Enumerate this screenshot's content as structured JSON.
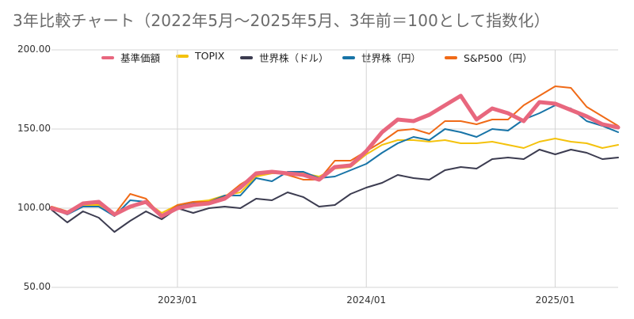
{
  "chart_data": {
    "type": "line",
    "title": "3年比較チャート（2022年5月～2025年5月、3年前＝100として指数化）",
    "xlabel": "",
    "ylabel": "",
    "ylim": [
      50,
      200
    ],
    "xlim": [
      "2022-05",
      "2025-05"
    ],
    "y_ticks": [
      "200.00",
      "150.00",
      "100.00",
      "50.00"
    ],
    "x_ticks": [
      "2023/01",
      "2024/01",
      "2025/01"
    ],
    "grid": true,
    "legend_position": "top",
    "x": [
      "2022-05",
      "2022-06",
      "2022-07",
      "2022-08",
      "2022-09",
      "2022-10",
      "2022-11",
      "2022-12",
      "2023-01",
      "2023-02",
      "2023-03",
      "2023-04",
      "2023-05",
      "2023-06",
      "2023-07",
      "2023-08",
      "2023-09",
      "2023-10",
      "2023-11",
      "2023-12",
      "2024-01",
      "2024-02",
      "2024-03",
      "2024-04",
      "2024-05",
      "2024-06",
      "2024-07",
      "2024-08",
      "2024-09",
      "2024-10",
      "2024-11",
      "2024-12",
      "2025-01",
      "2025-02",
      "2025-03",
      "2025-04",
      "2025-05"
    ],
    "series": [
      {
        "name": "基準価額",
        "color": "#e8677e",
        "values": [
          100,
          97,
          103,
          104,
          96,
          101,
          104,
          95,
          100,
          102,
          103,
          106,
          113,
          122,
          123,
          122,
          121,
          118,
          126,
          127,
          136,
          148,
          156,
          155,
          159,
          165,
          171,
          156,
          163,
          160,
          155,
          167,
          166,
          162,
          158,
          153,
          151
        ]
      },
      {
        "name": "TOPIX",
        "color": "#f4c20d",
        "values": [
          100,
          97,
          102,
          102,
          97,
          100,
          104,
          97,
          102,
          104,
          105,
          108,
          110,
          120,
          122,
          122,
          122,
          120,
          125,
          126,
          134,
          140,
          143,
          143,
          142,
          143,
          141,
          141,
          142,
          140,
          138,
          142,
          144,
          142,
          141,
          138,
          140
        ]
      },
      {
        "name": "世界株（ドル）",
        "color": "#3c3c50",
        "values": [
          99,
          91,
          98,
          94,
          85,
          92,
          98,
          93,
          100,
          97,
          100,
          101,
          100,
          106,
          105,
          110,
          107,
          101,
          102,
          109,
          113,
          116,
          121,
          119,
          118,
          124,
          126,
          125,
          131,
          132,
          131,
          137,
          134,
          137,
          135,
          131,
          132
        ]
      },
      {
        "name": "世界株（円）",
        "color": "#1874a7",
        "values": [
          100,
          96,
          101,
          101,
          95,
          105,
          104,
          95,
          101,
          103,
          104,
          108,
          108,
          119,
          117,
          123,
          123,
          119,
          120,
          124,
          128,
          135,
          141,
          145,
          143,
          150,
          148,
          145,
          150,
          149,
          156,
          160,
          165,
          163,
          155,
          152,
          148
        ]
      },
      {
        "name": "S&P500（円）",
        "color": "#f06a17",
        "values": [
          101,
          98,
          103,
          103,
          96,
          109,
          106,
          95,
          102,
          104,
          104,
          107,
          115,
          121,
          123,
          121,
          118,
          118,
          130,
          130,
          136,
          142,
          149,
          150,
          147,
          155,
          155,
          153,
          156,
          156,
          165,
          171,
          177,
          176,
          164,
          158,
          152
        ]
      }
    ]
  }
}
